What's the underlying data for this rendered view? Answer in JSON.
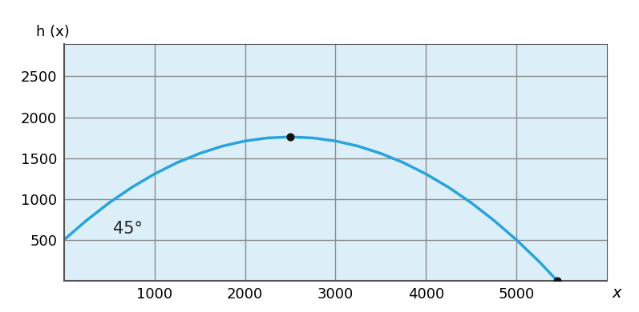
{
  "chart_data": {
    "type": "line",
    "x_label": "x",
    "y_label": "h (x)",
    "x": [
      0,
      250,
      500,
      750,
      1000,
      1250,
      1500,
      1750,
      2000,
      2250,
      2500,
      2750,
      3000,
      3250,
      3500,
      3750,
      4000,
      4250,
      4500,
      4750,
      5000,
      5250,
      5450
    ],
    "values": [
      500,
      739,
      954,
      1143,
      1306,
      1445,
      1558,
      1647,
      1710,
      1747,
      1760,
      1747,
      1710,
      1647,
      1558,
      1445,
      1306,
      1143,
      954,
      739,
      500,
      235,
      0
    ],
    "color": "#29a3dc",
    "highlight_points": {
      "x": [
        2500,
        5450
      ],
      "values": [
        1760,
        0
      ],
      "color": "#111111"
    },
    "annotations": [
      "45°"
    ],
    "xlim": [
      0,
      6000
    ],
    "ylim": [
      0,
      2900
    ],
    "xticks": [
      1000,
      2000,
      3000,
      4000,
      5000
    ],
    "yticks": [
      500,
      1000,
      1500,
      2000,
      2500
    ],
    "grid": true
  }
}
